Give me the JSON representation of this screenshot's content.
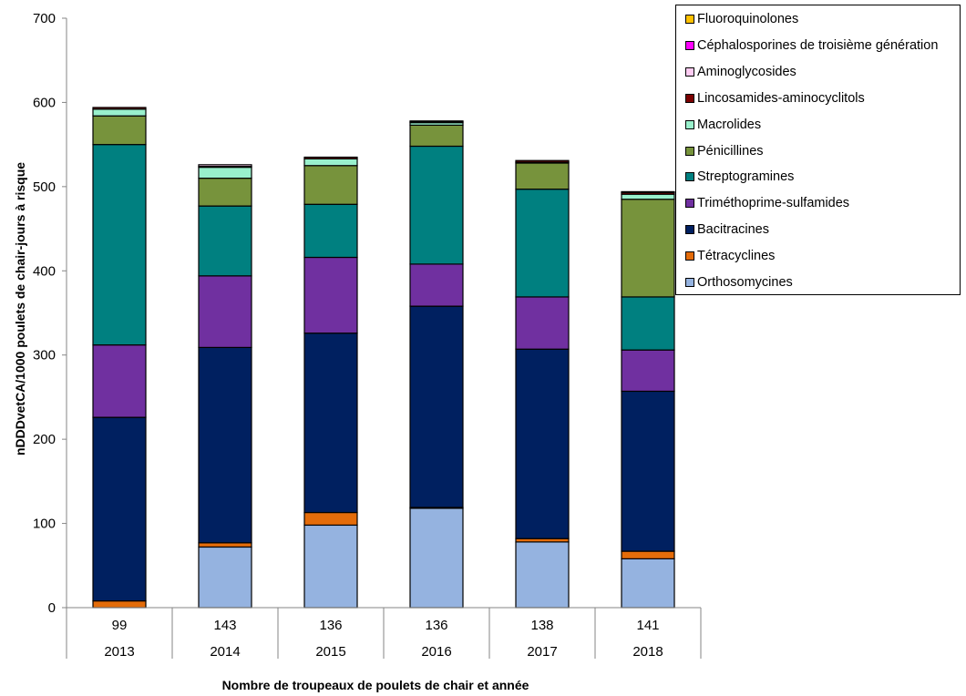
{
  "chart_data": {
    "type": "bar",
    "stacked": true,
    "title": "",
    "xlabel": "Nombre de troupeaux de poulets de chair et année",
    "ylabel": "nDDDvetCA/1000 poulets de chair-jours à risque",
    "ylim": [
      0,
      700
    ],
    "yticks": [
      0,
      100,
      200,
      300,
      400,
      500,
      600,
      700
    ],
    "grid": false,
    "legend_position": "top-right",
    "categories": [
      {
        "count": "99",
        "year": "2013"
      },
      {
        "count": "143",
        "year": "2014"
      },
      {
        "count": "136",
        "year": "2015"
      },
      {
        "count": "136",
        "year": "2016"
      },
      {
        "count": "138",
        "year": "2017"
      },
      {
        "count": "141",
        "year": "2018"
      }
    ],
    "series": [
      {
        "name": "Orthosomycines",
        "color": "#95B3E0",
        "values": [
          0,
          72,
          98,
          118,
          78,
          58
        ]
      },
      {
        "name": "Tétracyclines",
        "color": "#E46C0A",
        "values": [
          8,
          5,
          15,
          1,
          4,
          9
        ]
      },
      {
        "name": "Bacitracines",
        "color": "#002060",
        "values": [
          218,
          232,
          213,
          239,
          225,
          190
        ]
      },
      {
        "name": "Triméthoprime-sulfamides",
        "color": "#7030A0",
        "values": [
          86,
          85,
          90,
          50,
          62,
          49
        ]
      },
      {
        "name": "Streptogramines",
        "color": "#008080",
        "values": [
          238,
          83,
          63,
          140,
          128,
          63
        ]
      },
      {
        "name": "Pénicillines",
        "color": "#77933C",
        "values": [
          34,
          33,
          46,
          25,
          31,
          116
        ]
      },
      {
        "name": "Macrolides",
        "color": "#99F0CC",
        "values": [
          8,
          13,
          8,
          3,
          1,
          6
        ]
      },
      {
        "name": "Lincosamides-aminocyclitols",
        "color": "#7B0000",
        "values": [
          2,
          1,
          2,
          1,
          2,
          2
        ]
      },
      {
        "name": "Aminoglycosides",
        "color": "#FFCCF2",
        "values": [
          0,
          2,
          0,
          1,
          0,
          1
        ]
      },
      {
        "name": "Céphalosporines de troisième génération",
        "color": "#FF00FF",
        "values": [
          0,
          0,
          0,
          0,
          0,
          0
        ]
      },
      {
        "name": "Fluoroquinolones",
        "color": "#FFC000",
        "values": [
          0,
          0,
          0,
          0,
          0,
          0
        ]
      }
    ],
    "legend_order": [
      "Fluoroquinolones",
      "Céphalosporines de troisième génération",
      "Aminoglycosides",
      "Lincosamides-aminocyclitols",
      "Macrolides",
      "Pénicillines",
      "Streptogramines",
      "Triméthoprime-sulfamides",
      "Bacitracines",
      "Tétracyclines",
      "Orthosomycines"
    ]
  }
}
